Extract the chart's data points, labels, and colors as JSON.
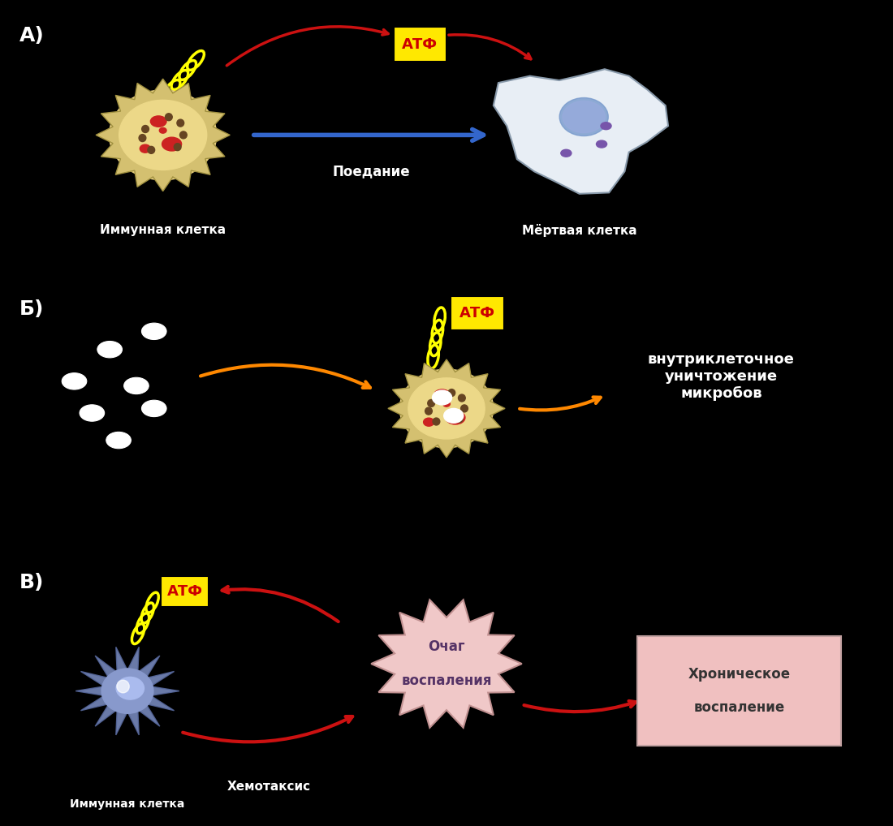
{
  "bg_color": "#000000",
  "panel_divider_color": "#555555",
  "atf_box_color": "#FFE800",
  "atf_text_color": "#CC0000",
  "atf_text": "АТФ",
  "panel_A_label": "А)",
  "panel_B_label": "Б)",
  "panel_C_label": "В)",
  "label_color": "#ffffff",
  "immune_cell_label_A": "Иммунная клетка",
  "dead_cell_label": "Мёртвая клетка",
  "eating_label": "Поедание",
  "intracell_label": "внутриклеточное\nуничтожение\nмикробов",
  "focus_label": "Очаг\n\nвоспаления",
  "chronic_label": "Хроническое\n\nвоспаление",
  "chemotaxis_label": "Хемотаксис",
  "immune_cell_label_C": "Иммунная клетка",
  "arrow_red": "#CC1111",
  "arrow_blue": "#3366CC",
  "arrow_orange": "#FF8800",
  "focus_bg": "#F0C8C8",
  "chronic_bg": "#F0C0C0",
  "focus_text_color": "#553366",
  "chronic_text_color": "#333333"
}
